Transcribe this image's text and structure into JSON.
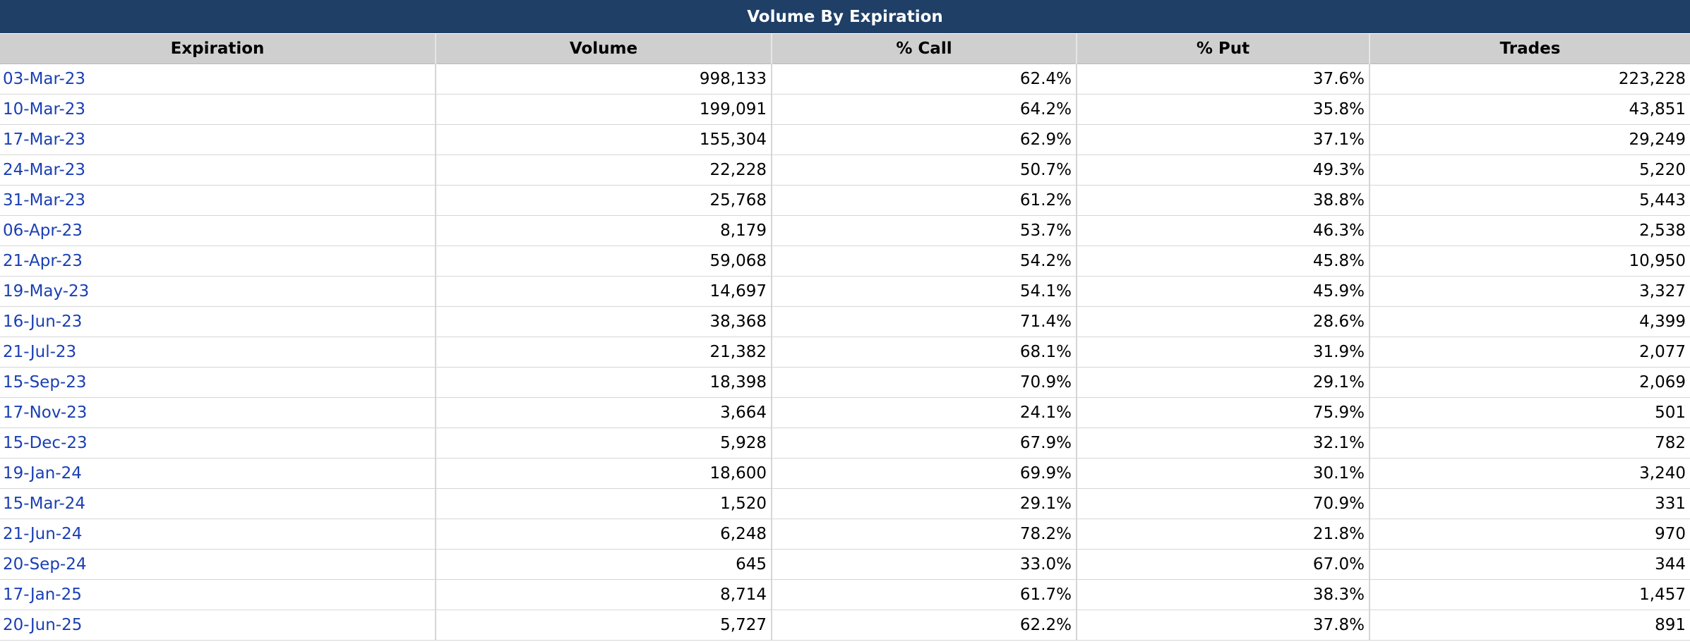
{
  "title": "Volume By Expiration",
  "columns": {
    "expiration": "Expiration",
    "volume": "Volume",
    "call": "% Call",
    "put": "% Put",
    "trades": "Trades"
  },
  "rows": [
    {
      "expiration": "03-Mar-23",
      "volume": "998,133",
      "call": "62.4%",
      "put": "37.6%",
      "trades": "223,228"
    },
    {
      "expiration": "10-Mar-23",
      "volume": "199,091",
      "call": "64.2%",
      "put": "35.8%",
      "trades": "43,851"
    },
    {
      "expiration": "17-Mar-23",
      "volume": "155,304",
      "call": "62.9%",
      "put": "37.1%",
      "trades": "29,249"
    },
    {
      "expiration": "24-Mar-23",
      "volume": "22,228",
      "call": "50.7%",
      "put": "49.3%",
      "trades": "5,220"
    },
    {
      "expiration": "31-Mar-23",
      "volume": "25,768",
      "call": "61.2%",
      "put": "38.8%",
      "trades": "5,443"
    },
    {
      "expiration": "06-Apr-23",
      "volume": "8,179",
      "call": "53.7%",
      "put": "46.3%",
      "trades": "2,538"
    },
    {
      "expiration": "21-Apr-23",
      "volume": "59,068",
      "call": "54.2%",
      "put": "45.8%",
      "trades": "10,950"
    },
    {
      "expiration": "19-May-23",
      "volume": "14,697",
      "call": "54.1%",
      "put": "45.9%",
      "trades": "3,327"
    },
    {
      "expiration": "16-Jun-23",
      "volume": "38,368",
      "call": "71.4%",
      "put": "28.6%",
      "trades": "4,399"
    },
    {
      "expiration": "21-Jul-23",
      "volume": "21,382",
      "call": "68.1%",
      "put": "31.9%",
      "trades": "2,077"
    },
    {
      "expiration": "15-Sep-23",
      "volume": "18,398",
      "call": "70.9%",
      "put": "29.1%",
      "trades": "2,069"
    },
    {
      "expiration": "17-Nov-23",
      "volume": "3,664",
      "call": "24.1%",
      "put": "75.9%",
      "trades": "501"
    },
    {
      "expiration": "15-Dec-23",
      "volume": "5,928",
      "call": "67.9%",
      "put": "32.1%",
      "trades": "782"
    },
    {
      "expiration": "19-Jan-24",
      "volume": "18,600",
      "call": "69.9%",
      "put": "30.1%",
      "trades": "3,240"
    },
    {
      "expiration": "15-Mar-24",
      "volume": "1,520",
      "call": "29.1%",
      "put": "70.9%",
      "trades": "331"
    },
    {
      "expiration": "21-Jun-24",
      "volume": "6,248",
      "call": "78.2%",
      "put": "21.8%",
      "trades": "970"
    },
    {
      "expiration": "20-Sep-24",
      "volume": "645",
      "call": "33.0%",
      "put": "67.0%",
      "trades": "344"
    },
    {
      "expiration": "17-Jan-25",
      "volume": "8,714",
      "call": "61.7%",
      "put": "38.3%",
      "trades": "1,457"
    },
    {
      "expiration": "20-Jun-25",
      "volume": "5,727",
      "call": "62.2%",
      "put": "37.8%",
      "trades": "891"
    }
  ],
  "colors": {
    "title_bg": "#1f3f66",
    "header_bg": "#cfcfcf",
    "link": "#1a3fb4"
  }
}
